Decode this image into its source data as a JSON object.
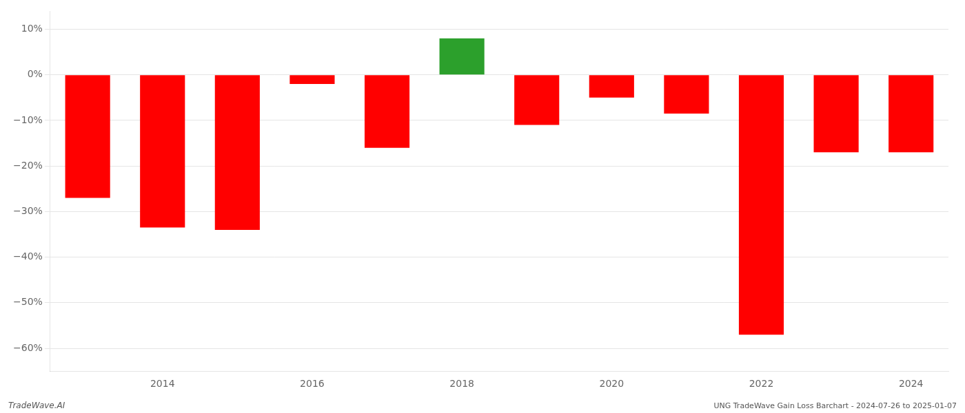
{
  "chart_data": {
    "type": "bar",
    "categories": [
      null,
      "2014",
      null,
      "2016",
      null,
      "2018",
      null,
      "2020",
      null,
      "2022",
      null,
      "2024"
    ],
    "values": [
      -27.0,
      -33.5,
      -34.0,
      -2.0,
      -16.0,
      8.0,
      -11.0,
      -5.0,
      -8.5,
      -57.0,
      -17.0,
      -17.0
    ],
    "colors": [
      "#ff0000",
      "#ff0000",
      "#ff0000",
      "#ff0000",
      "#ff0000",
      "#2ca02c",
      "#ff0000",
      "#ff0000",
      "#ff0000",
      "#ff0000",
      "#ff0000",
      "#ff0000"
    ],
    "ylim": [
      -65,
      14
    ],
    "yticks": [
      {
        "value": 10,
        "label": "10%"
      },
      {
        "value": 0,
        "label": "0%"
      },
      {
        "value": -10,
        "label": "−10%"
      },
      {
        "value": -20,
        "label": "−20%"
      },
      {
        "value": -30,
        "label": "−30%"
      },
      {
        "value": -40,
        "label": "−40%"
      },
      {
        "value": -50,
        "label": "−50%"
      },
      {
        "value": -60,
        "label": "−60%"
      }
    ],
    "grid": true,
    "annotations": [
      "TradeWave.AI",
      "UNG TradeWave Gain Loss Barchart - 2024-07-26 to 2025-01-07"
    ]
  }
}
